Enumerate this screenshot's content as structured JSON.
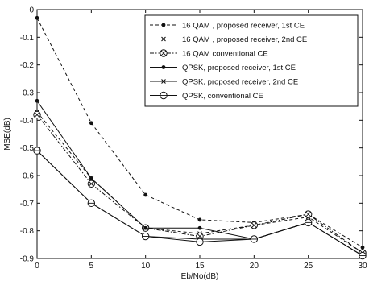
{
  "chart_data": {
    "type": "line",
    "title": "",
    "xlabel": "Eb/No(dB)",
    "ylabel": "MSE(dB)",
    "xlim": [
      0,
      30
    ],
    "ylim": [
      -0.9,
      0
    ],
    "xticks": [
      0,
      5,
      10,
      15,
      20,
      25,
      30
    ],
    "yticks": [
      0,
      -0.1,
      -0.2,
      -0.3,
      -0.4,
      -0.5,
      -0.6,
      -0.7,
      -0.8,
      -0.9
    ],
    "grid": false,
    "legend_position": "top-right",
    "x": [
      0,
      5,
      10,
      15,
      20,
      25,
      30
    ],
    "series": [
      {
        "name": "16 QAM , proposed receiver, 1st CE",
        "values": [
          -0.03,
          -0.41,
          -0.67,
          -0.76,
          -0.77,
          -0.74,
          -0.86
        ],
        "dash": "dashed",
        "marker": "dot",
        "color": "#111111"
      },
      {
        "name": "16 QAM , proposed receiver, 2nd CE",
        "values": [
          -0.37,
          -0.61,
          -0.79,
          -0.81,
          -0.78,
          -0.75,
          -0.88
        ],
        "dash": "dashed",
        "marker": "x",
        "color": "#111111"
      },
      {
        "name": "16 QAM conventional CE",
        "values": [
          -0.38,
          -0.63,
          -0.79,
          -0.82,
          -0.78,
          -0.74,
          -0.88
        ],
        "dash": "dashdot",
        "marker": "circle-x",
        "color": "#111111"
      },
      {
        "name": "QPSK, proposed receiver, 1st CE",
        "values": [
          -0.33,
          -0.61,
          -0.79,
          -0.79,
          -0.83,
          -0.77,
          -0.89
        ],
        "dash": "solid",
        "marker": "dot",
        "color": "#111111"
      },
      {
        "name": "QPSK, proposed receiver, 2nd CE",
        "values": [
          -0.51,
          -0.7,
          -0.82,
          -0.83,
          -0.83,
          -0.77,
          -0.89
        ],
        "dash": "solid",
        "marker": "x",
        "color": "#111111"
      },
      {
        "name": "QPSK, conventional CE",
        "values": [
          -0.51,
          -0.7,
          -0.82,
          -0.84,
          -0.83,
          -0.77,
          -0.89
        ],
        "dash": "solid",
        "marker": "circle-dash",
        "color": "#111111"
      }
    ]
  }
}
